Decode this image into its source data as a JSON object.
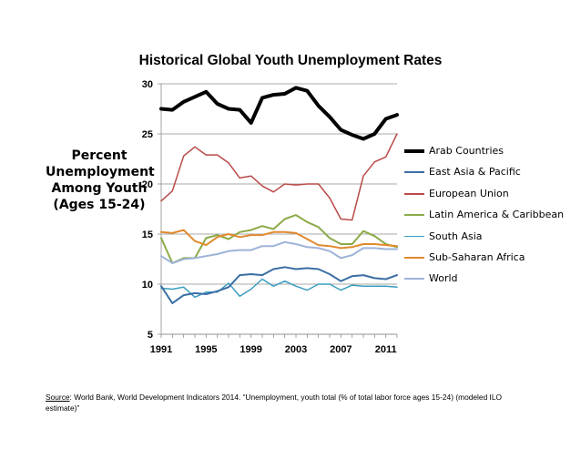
{
  "chart_data": {
    "type": "line",
    "title": "Historical Global Youth Unemployment Rates",
    "ylabel_lines": [
      "Percent",
      "Unemployment",
      "Among Youth",
      "(Ages 15-24)"
    ],
    "xlabel": "",
    "x": [
      1991,
      1992,
      1993,
      1994,
      1995,
      1996,
      1997,
      1998,
      1999,
      2000,
      2001,
      2002,
      2003,
      2004,
      2005,
      2006,
      2007,
      2008,
      2009,
      2010,
      2011,
      2012
    ],
    "xlim": [
      1991,
      2012
    ],
    "ylim": [
      5,
      30
    ],
    "xticks": [
      "1991",
      "1995",
      "1999",
      "2003",
      "2007",
      "2011"
    ],
    "yticks": [
      "5",
      "10",
      "15",
      "20",
      "25",
      "30"
    ],
    "grid": "horizontal",
    "legend_position": "right",
    "series": [
      {
        "name": "Arab Countries",
        "color": "#000000",
        "width": 4,
        "values": [
          27.5,
          27.4,
          28.2,
          28.7,
          29.2,
          28.0,
          27.5,
          27.4,
          26.1,
          28.6,
          28.9,
          29.0,
          29.6,
          29.3,
          27.8,
          26.7,
          25.4,
          24.9,
          24.5,
          25.0,
          26.5,
          26.9
        ]
      },
      {
        "name": "East Asia & Pacific",
        "color": "#3B6EA5",
        "width": 2,
        "values": [
          9.8,
          8.1,
          8.9,
          9.1,
          9.0,
          9.3,
          9.7,
          10.9,
          11.0,
          10.9,
          11.5,
          11.7,
          11.5,
          11.6,
          11.5,
          11.0,
          10.3,
          10.8,
          10.9,
          10.6,
          10.5,
          10.9
        ]
      },
      {
        "name": "European Union",
        "color": "#B94A48",
        "width": 1.5,
        "values": [
          18.3,
          19.3,
          22.8,
          23.7,
          22.9,
          22.9,
          22.1,
          20.6,
          20.8,
          19.8,
          19.2,
          20.0,
          19.9,
          20.0,
          20.0,
          18.6,
          16.5,
          16.4,
          20.8,
          22.2,
          22.7,
          25.0
        ]
      },
      {
        "name": "Latin America & Caribbean",
        "color": "#8CAA48",
        "width": 2,
        "values": [
          14.6,
          12.1,
          12.6,
          12.6,
          14.6,
          14.9,
          14.5,
          15.2,
          15.4,
          15.8,
          15.5,
          16.5,
          16.9,
          16.2,
          15.7,
          14.6,
          14.0,
          14.0,
          15.3,
          14.8,
          14.0,
          13.7
        ]
      },
      {
        "name": "South Asia",
        "color": "#3A9DBF",
        "width": 1.5,
        "values": [
          9.6,
          9.5,
          9.7,
          8.7,
          9.2,
          9.2,
          10.1,
          8.8,
          9.5,
          10.5,
          9.8,
          10.3,
          9.8,
          9.4,
          10.0,
          10.0,
          9.4,
          9.9,
          9.8,
          9.8,
          9.8,
          9.7
        ]
      },
      {
        "name": "Sub-Saharan Africa",
        "color": "#E08A2E",
        "width": 2,
        "values": [
          15.2,
          15.1,
          15.4,
          14.3,
          13.9,
          14.7,
          15.0,
          14.7,
          14.9,
          14.9,
          15.2,
          15.2,
          15.1,
          14.5,
          13.9,
          13.8,
          13.6,
          13.7,
          14.0,
          14.0,
          13.9,
          13.8
        ]
      },
      {
        "name": "World",
        "color": "#9DB3D8",
        "width": 2,
        "values": [
          12.8,
          12.1,
          12.5,
          12.6,
          12.8,
          13.0,
          13.3,
          13.4,
          13.4,
          13.8,
          13.8,
          14.2,
          14.0,
          13.7,
          13.6,
          13.3,
          12.6,
          12.9,
          13.6,
          13.6,
          13.5,
          13.5
        ]
      }
    ]
  },
  "source": {
    "label": "Source",
    "text": ": World Bank, World Development Indicators 2014. “Unemployment, youth total (% of total labor force ages 15-24) (modeled ILO estimate)”"
  }
}
